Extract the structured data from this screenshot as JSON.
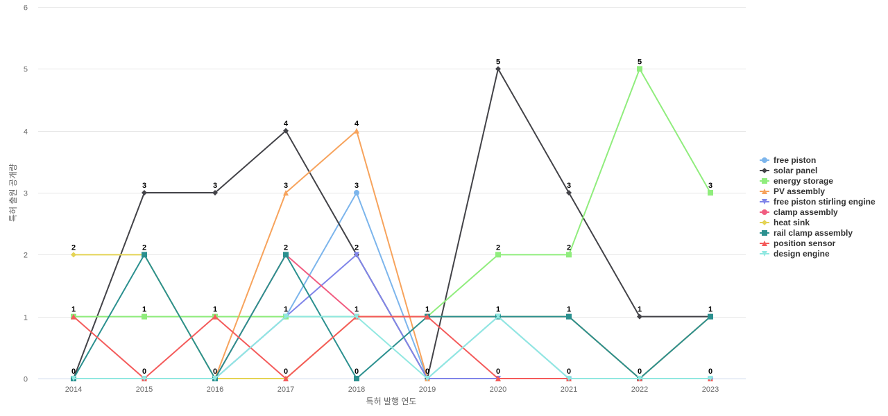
{
  "chart_data": {
    "type": "line",
    "title": "",
    "xlabel": "특허 발행 연도",
    "ylabel": "특허 출원 공개량",
    "x": [
      "2014",
      "2015",
      "2016",
      "2017",
      "2018",
      "2019",
      "2020",
      "2021",
      "2022",
      "2023"
    ],
    "ylim": [
      0,
      6
    ],
    "yticks": [
      0,
      1,
      2,
      3,
      4,
      5,
      6
    ],
    "grid": true,
    "legend_position": "right",
    "series": [
      {
        "name": "free piston",
        "color": "#7cb5ec",
        "marker": "circle",
        "values": [
          0,
          0,
          0,
          1,
          3,
          0,
          1,
          0,
          0,
          0
        ]
      },
      {
        "name": "solar panel",
        "color": "#434348",
        "marker": "diamond",
        "values": [
          0,
          3,
          3,
          4,
          2,
          0,
          5,
          3,
          1,
          1
        ]
      },
      {
        "name": "energy storage",
        "color": "#90ed7d",
        "marker": "square",
        "values": [
          1,
          1,
          1,
          1,
          1,
          1,
          2,
          2,
          5,
          3
        ]
      },
      {
        "name": "PV assembly",
        "color": "#f7a35c",
        "marker": "triangle",
        "values": [
          0,
          0,
          0,
          3,
          4,
          0,
          0,
          0,
          0,
          0
        ]
      },
      {
        "name": "free piston stirling engine",
        "color": "#8085e9",
        "marker": "triangle-down",
        "values": [
          0,
          0,
          0,
          1,
          2,
          0,
          0,
          0,
          0,
          0
        ]
      },
      {
        "name": "clamp assembly",
        "color": "#f15c80",
        "marker": "circle",
        "values": [
          0,
          0,
          0,
          2,
          1,
          1,
          1,
          1,
          0,
          1
        ]
      },
      {
        "name": "heat sink",
        "color": "#e4d354",
        "marker": "diamond",
        "values": [
          2,
          2,
          0,
          0,
          1,
          1,
          1,
          1,
          0,
          1
        ]
      },
      {
        "name": "rail clamp assembly",
        "color": "#2b908f",
        "marker": "square",
        "values": [
          0,
          2,
          0,
          2,
          0,
          1,
          1,
          1,
          0,
          1
        ]
      },
      {
        "name": "position sensor",
        "color": "#f45b5b",
        "marker": "triangle",
        "values": [
          1,
          0,
          1,
          0,
          1,
          1,
          0,
          0,
          0,
          0
        ]
      },
      {
        "name": "design engine",
        "color": "#91e8e1",
        "marker": "triangle-down",
        "values": [
          0,
          0,
          0,
          1,
          1,
          0,
          1,
          0,
          0,
          0
        ]
      }
    ],
    "data_labels": [
      {
        "x": "2014",
        "values": [
          "2",
          "1",
          "0"
        ]
      },
      {
        "x": "2015",
        "values": [
          "3",
          "2",
          "1",
          "0"
        ]
      },
      {
        "x": "2016",
        "values": [
          "3",
          "1",
          "0"
        ]
      },
      {
        "x": "2017",
        "values": [
          "4",
          "3",
          "2",
          "1",
          "0"
        ]
      },
      {
        "x": "2018",
        "values": [
          "4",
          "3",
          "2",
          "1",
          "0"
        ]
      },
      {
        "x": "2019",
        "values": [
          "1",
          "0"
        ]
      },
      {
        "x": "2020",
        "values": [
          "5",
          "2",
          "1",
          "0"
        ]
      },
      {
        "x": "2021",
        "values": [
          "3",
          "2",
          "1",
          "0"
        ]
      },
      {
        "x": "2022",
        "values": [
          "5",
          "1",
          "0"
        ]
      },
      {
        "x": "2023",
        "values": [
          "3",
          "1",
          "0"
        ]
      }
    ]
  }
}
